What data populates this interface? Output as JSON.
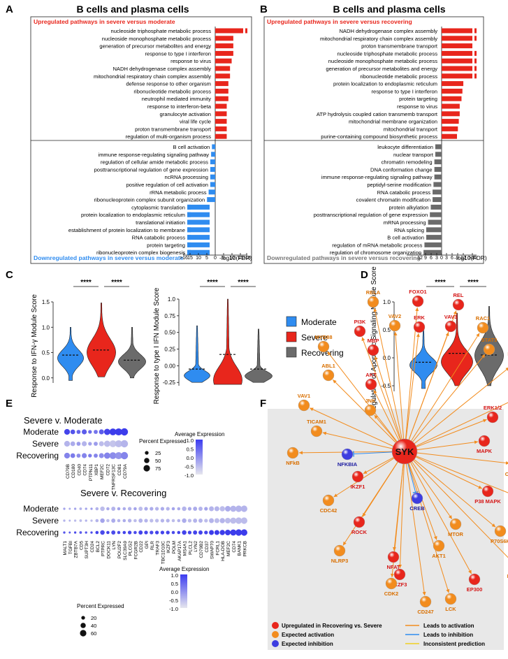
{
  "panels": {
    "A": {
      "letter": "A",
      "title": "B cells and plasma cells",
      "up_header": "Upregulated pathways in severe versus moderate",
      "down_footer": "Downregulated pathways in severe versus moderate",
      "xlabel": "-log10(FDR)",
      "left_ticks": [
        ">16",
        "15",
        "10",
        "5",
        "0"
      ],
      "right_ticks": [
        "5",
        "10",
        "15",
        ">16"
      ]
    },
    "B": {
      "letter": "B",
      "title": "B cells and plasma cells",
      "up_header": "Upregulated pathways in severe versus recovering",
      "down_footer": "Downregulated pathways in severe versus recovering",
      "xlabel": "-log10(FDR)",
      "left_ticks": [
        "12",
        "9",
        "6",
        "3",
        "0"
      ],
      "right_ticks": [
        "3",
        "6",
        "9",
        "12",
        ">16"
      ]
    },
    "C": {
      "letter": "C",
      "ylabel1": "Response to IFN-γ Module Score",
      "ylabel2": "Response to type I IFN Module Score",
      "sig": "****"
    },
    "D": {
      "letter": "D",
      "ylabel": "Regulation of Apoptotic Signaling Module Score",
      "sig": "****"
    },
    "E": {
      "letter": "E",
      "top_title": "Severe v. Moderate",
      "bottom_title": "Severe v. Recovering",
      "rows": [
        "Moderate",
        "Severe",
        "Recovering"
      ],
      "avg_label": "Average Expression",
      "pct_label": "Percent Expressed",
      "avg_ticks": [
        "1.0",
        "0.5",
        "0.0",
        "-0.5",
        "-1.0"
      ],
      "pct_top": [
        "25",
        "50",
        "75"
      ],
      "pct_bottom": [
        "20",
        "40",
        "60"
      ]
    },
    "F": {
      "letter": "F",
      "hub": "SYK",
      "legend_red": "Upregulated in Recovering vs. Severe",
      "legend_orange": "Expected activation",
      "legend_blue": "Expected inhibition",
      "legend_act": "Leads to activation",
      "legend_inh": "Leads to inhibition",
      "legend_inc": "Inconsistent prediction"
    }
  },
  "legend_groups": [
    {
      "label": "Moderate",
      "color": "#2f8cf0"
    },
    {
      "label": "Severe",
      "color": "#e8261c"
    },
    {
      "label": "Recovering",
      "color": "#6b6b6b"
    }
  ],
  "colors": {
    "moderate": "#2f8cf0",
    "severe": "#e8261c",
    "recovering": "#6b6b6b",
    "orange": "#f28c1e",
    "blue": "#3d3de0"
  },
  "chart_data": [
    {
      "type": "bar",
      "panel": "A",
      "series": [
        {
          "name": "Upregulated pathways in severe versus moderate",
          "categories": [
            "nucleoside triphosphate metabolic process",
            "nucleoside monophosphate metabolic process",
            "generation of precursor metabolites and energy",
            "response to type I interferon",
            "response to virus",
            "NADH dehydrogenase complex assembly",
            "mitochondrial respiratory chain complex assembly",
            "defense response to other organism",
            "ribonucleotide metabolic process",
            "neutrophil mediated immunity",
            "response to interferon-beta",
            "granulocyte activation",
            "viral life cycle",
            "proton transmembrane transport",
            "regulation of multi-organism process"
          ],
          "values": [
            17,
            11,
            11,
            11,
            10,
            9,
            9,
            8,
            8,
            8,
            7,
            7,
            7,
            7,
            7
          ],
          "broken": [
            true,
            false,
            false,
            false,
            false,
            false,
            false,
            false,
            false,
            false,
            false,
            false,
            false,
            false,
            false
          ]
        },
        {
          "name": "Downregulated pathways in severe versus moderate",
          "categories": [
            "B cell activation",
            "immune response-regulating signaling pathway",
            "regulation of cellular amide metabolic process",
            "posttranscriptional regulation of gene expression",
            "ncRNA processing",
            "positive regulation of cell activation",
            "rRNA metabolic process",
            "ribonucleoprotein complex subunit organization",
            "cytoplasmic translation",
            "protein localization to endoplasmic reticulum",
            "translational initiation",
            "establishment of protein localization to membrane",
            "RNA catabolic process",
            "protein targeting",
            "ribonucleoprotein complex biogenesis"
          ],
          "values": [
            2,
            2.5,
            3,
            3,
            3,
            3,
            4,
            5,
            17,
            17,
            17,
            17,
            17,
            17,
            17
          ],
          "broken": [
            false,
            false,
            false,
            false,
            false,
            false,
            false,
            false,
            true,
            true,
            true,
            true,
            true,
            true,
            true
          ]
        }
      ],
      "xlabel": "-log10(FDR)"
    },
    {
      "type": "bar",
      "panel": "B",
      "series": [
        {
          "name": "Upregulated pathways in severe versus recovering",
          "categories": [
            "NADH dehydrogenase complex assembly",
            "mitochondrial respiratory chain complex assembly",
            "proton transmembrane transport",
            "nucleoside triphosphate metabolic process",
            "nucleoside monophosphate metabolic process",
            "generation of precursor metabolites and energy",
            "ribonucleotide metabolic process",
            "protein localization to endoplasmic reticulum",
            "response to type I interferon",
            "protein targeting",
            "response to virus",
            "ATP hydrolysis coupled cation transmemb transport",
            "mitochondrial membrane organization",
            "mitochondrial transport",
            "purine-containing compound biosynthetic process"
          ],
          "values": [
            17,
            17,
            17,
            17,
            17,
            17,
            17,
            12,
            11.5,
            11,
            10,
            10,
            9.5,
            9,
            8.5
          ],
          "broken": [
            true,
            true,
            false,
            true,
            true,
            true,
            true,
            false,
            false,
            false,
            false,
            false,
            false,
            false,
            false
          ]
        },
        {
          "name": "Downregulated pathways in severe versus recovering",
          "categories": [
            "leukocyte differentiation",
            "nuclear transport",
            "chromatin remodeling",
            "DNA conformation change",
            "immune response-regulating signaling pathway",
            "peptidyl-serine modification",
            "RNA catabolic process",
            "covalent chromatin modification",
            "protein alkylation",
            "posttranscriptional regulation of gene expression",
            "mRNA processing",
            "RNA splicing",
            "B cell activation",
            "regulation of mRNA metabolic process",
            "regulation of chromosome organization"
          ],
          "values": [
            3.5,
            3.5,
            4,
            4,
            4,
            4.5,
            5,
            5,
            6,
            6.5,
            7.5,
            8.5,
            8.5,
            9.5,
            10
          ],
          "broken": [
            false,
            false,
            false,
            false,
            false,
            false,
            false,
            false,
            false,
            false,
            false,
            false,
            false,
            false,
            false
          ]
        }
      ],
      "xlabel": "-log10(FDR)"
    },
    {
      "type": "violin",
      "panel": "C-left",
      "categories": [
        "Moderate",
        "Severe",
        "Recovering"
      ],
      "medians": [
        0.45,
        0.55,
        0.35
      ],
      "yticks": [
        "1.5",
        "1.0",
        "0.5",
        "0.0"
      ],
      "ylim": [
        -0.1,
        1.5
      ]
    },
    {
      "type": "violin",
      "panel": "C-right",
      "categories": [
        "Moderate",
        "Severe",
        "Recovering"
      ],
      "medians": [
        -0.05,
        0.17,
        -0.05
      ],
      "yticks": [
        "1.0",
        "0.75",
        "0.50",
        "0.25",
        "0.00",
        "-0.25"
      ],
      "ylim": [
        -0.3,
        1.0
      ]
    },
    {
      "type": "violin",
      "panel": "D",
      "categories": [
        "Moderate",
        "Severe",
        "Recovering"
      ],
      "medians": [
        -0.08,
        0.08,
        0.05
      ],
      "yticks": [
        "1.0",
        "0.5",
        "0.0",
        "-0.5"
      ],
      "ylim": [
        -0.6,
        1.0
      ]
    },
    {
      "type": "dotplot",
      "panel": "E-top",
      "genes": [
        "CD79B",
        "CD180",
        "CD40",
        "CD74",
        "PTPN11",
        "XBP1",
        "MEF2C",
        "CD72",
        "TNFRSF13C",
        "CD81",
        "CD79A"
      ],
      "rows": [
        "Moderate",
        "Severe",
        "Recovering"
      ],
      "avg": [
        [
          0.9,
          0.7,
          0.5,
          0.6,
          0.4,
          0.3,
          0.6,
          0.9,
          1.0,
          1.0,
          1.0
        ],
        [
          -0.5,
          -0.4,
          -0.2,
          -0.5,
          -0.3,
          -0.2,
          -0.6,
          -0.6,
          -0.7,
          -0.6,
          -0.5
        ],
        [
          0.1,
          0.2,
          0.0,
          0.1,
          0.2,
          0.1,
          0.0,
          0.1,
          0.0,
          -0.1,
          0.1
        ]
      ],
      "pct": [
        [
          60,
          40,
          30,
          45,
          25,
          30,
          45,
          70,
          85,
          90,
          95
        ],
        [
          60,
          40,
          30,
          45,
          25,
          30,
          45,
          70,
          85,
          90,
          95
        ],
        [
          60,
          40,
          30,
          45,
          25,
          30,
          45,
          70,
          85,
          90,
          95
        ]
      ]
    },
    {
      "type": "dotplot",
      "panel": "E-bottom",
      "genes": [
        "MALT1",
        "TGFBI",
        "ZBTB7A",
        "CD5",
        "SUPT3H",
        "CD24",
        "BCL2",
        "PTPRC",
        "DOCK11",
        "LYN",
        "POU2F2",
        "SLC39A9",
        "PLCG2",
        "FCGR2B",
        "CD22",
        "GPI",
        "RLR",
        "TRAF3",
        "TBC1D10C",
        "IKZF3",
        "POLM",
        "AKAP17A",
        "MS4A1",
        "PLCL2",
        "LYN2",
        "CD79B2",
        "CD37",
        "SWAP70",
        "FCRL1",
        "HLA-DOB",
        "MEF2C",
        "CD74",
        "BANK1",
        "PRKCB"
      ],
      "rows": [
        "Moderate",
        "Severe",
        "Recovering"
      ],
      "avg": [
        [
          -0.3,
          -0.4,
          -0.3,
          -0.5,
          -0.3,
          -0.2,
          -0.5,
          -0.6,
          -0.4,
          -0.5,
          -0.3,
          -0.4,
          -0.5,
          -0.3,
          -0.6,
          -0.4,
          -0.4,
          -0.5,
          -0.4,
          -0.5,
          -0.3,
          -0.4,
          -0.5,
          -0.4,
          -0.4,
          -0.5,
          -0.3,
          -0.5,
          -0.5,
          -0.6,
          -0.4,
          -0.5,
          -0.5,
          -0.5
        ],
        [
          -0.5,
          -0.5,
          -0.6,
          -0.6,
          -0.5,
          -0.6,
          -0.5,
          -0.3,
          -0.6,
          -0.4,
          -0.5,
          -0.4,
          -0.5,
          -0.6,
          -0.5,
          -0.5,
          -0.6,
          -0.6,
          -0.5,
          -0.5,
          -0.6,
          -0.5,
          -0.4,
          -0.6,
          -0.5,
          -0.5,
          -0.6,
          -0.5,
          -0.6,
          -0.5,
          -0.6,
          -0.6,
          -0.6,
          -0.6
        ],
        [
          0.7,
          0.6,
          0.8,
          0.6,
          0.7,
          0.8,
          0.9,
          0.8,
          0.9,
          0.8,
          0.8,
          0.9,
          0.9,
          0.8,
          0.9,
          0.9,
          0.8,
          0.9,
          0.9,
          0.9,
          0.8,
          0.9,
          0.9,
          0.9,
          0.9,
          0.9,
          0.9,
          1.0,
          1.0,
          1.0,
          1.0,
          1.0,
          1.0,
          1.0
        ]
      ],
      "pct": [
        [
          8,
          6,
          8,
          10,
          8,
          8,
          15,
          30,
          15,
          25,
          15,
          15,
          20,
          15,
          25,
          20,
          20,
          20,
          20,
          20,
          15,
          15,
          30,
          20,
          25,
          25,
          20,
          35,
          35,
          40,
          45,
          55,
          60,
          60
        ],
        [
          8,
          6,
          8,
          10,
          8,
          8,
          15,
          30,
          15,
          25,
          15,
          15,
          20,
          15,
          25,
          20,
          20,
          20,
          20,
          20,
          15,
          15,
          30,
          20,
          25,
          25,
          20,
          35,
          35,
          40,
          45,
          55,
          60,
          60
        ],
        [
          8,
          6,
          8,
          10,
          8,
          8,
          15,
          30,
          15,
          25,
          15,
          15,
          20,
          15,
          25,
          20,
          20,
          20,
          20,
          20,
          15,
          15,
          30,
          20,
          25,
          25,
          20,
          35,
          35,
          40,
          45,
          55,
          60,
          60
        ]
      ]
    }
  ],
  "network": {
    "hub": "SYK",
    "nodes": [
      {
        "label": "RELA",
        "color": "orange",
        "pos": [
          534,
          432
        ]
      },
      {
        "label": "FOXO1",
        "color": "red",
        "pos": [
          598,
          431
        ]
      },
      {
        "label": "REL",
        "color": "red",
        "pos": [
          656,
          436
        ]
      },
      {
        "label": "PI3K",
        "color": "red",
        "pos": [
          515,
          474
        ]
      },
      {
        "label": "VAV2",
        "color": "orange",
        "pos": [
          565,
          466
        ]
      },
      {
        "label": "ERK",
        "color": "red",
        "pos": [
          600,
          468
        ]
      },
      {
        "label": "VAV3",
        "color": "red",
        "pos": [
          645,
          467
        ]
      },
      {
        "label": "RAC1",
        "color": "orange",
        "pos": [
          691,
          469
        ]
      },
      {
        "label": "MYD88",
        "color": "orange",
        "pos": [
          463,
          496
        ]
      },
      {
        "label": "MBP",
        "color": "red",
        "pos": [
          534,
          501
        ]
      },
      {
        "label": "STAT3",
        "color": "orange",
        "pos": [
          700,
          500
        ]
      },
      {
        "label": "ABL1",
        "color": "orange",
        "pos": [
          470,
          537
        ]
      },
      {
        "label": "LCP2",
        "color": "orange",
        "pos": [
          736,
          520
        ]
      },
      {
        "label": "AKT",
        "color": "red",
        "pos": [
          531,
          550
        ]
      },
      {
        "label": "MAPK1",
        "color": "red",
        "pos": [
          744,
          568
        ]
      },
      {
        "label": "VAV1",
        "color": "orange",
        "pos": [
          435,
          580
        ]
      },
      {
        "label": "JNK",
        "color": "orange",
        "pos": [
          530,
          587
        ]
      },
      {
        "label": "ERK1/2",
        "color": "red",
        "pos": [
          705,
          597
        ]
      },
      {
        "label": "MAPK",
        "color": "red",
        "pos": [
          693,
          631
        ]
      },
      {
        "label": "TICAM1",
        "color": "orange",
        "pos": [
          453,
          617
        ]
      },
      {
        "label": "NFkB",
        "color": "orange",
        "pos": [
          419,
          648
        ]
      },
      {
        "label": "NFKBIA",
        "color": "blue",
        "pos": [
          497,
          650
        ]
      },
      {
        "label": "CTNNB1",
        "color": "orange",
        "pos": [
          738,
          664
        ]
      },
      {
        "label": "IKZF1",
        "color": "red",
        "pos": [
          512,
          682
        ]
      },
      {
        "label": "P38 MAPK",
        "color": "red",
        "pos": [
          698,
          703
        ]
      },
      {
        "label": "BACP31",
        "color": "orange",
        "pos": [
          752,
          715
        ]
      },
      {
        "label": "CREB",
        "color": "blue",
        "pos": [
          597,
          713
        ]
      },
      {
        "label": "CDC42",
        "color": "orange",
        "pos": [
          470,
          716
        ]
      },
      {
        "label": "ROCK",
        "color": "red",
        "pos": [
          514,
          747
        ]
      },
      {
        "label": "MTOR",
        "color": "orange",
        "pos": [
          652,
          750
        ]
      },
      {
        "label": "P70S6K",
        "color": "orange",
        "pos": [
          716,
          760
        ]
      },
      {
        "label": "AKT1",
        "color": "orange",
        "pos": [
          628,
          781
        ]
      },
      {
        "label": "NFAT",
        "color": "red",
        "pos": [
          563,
          797
        ]
      },
      {
        "label": "IKZF3",
        "color": "red",
        "pos": [
          572,
          822
        ]
      },
      {
        "label": "NLRP3",
        "color": "orange",
        "pos": [
          486,
          788
        ]
      },
      {
        "label": "CDK2",
        "color": "orange",
        "pos": [
          560,
          835
        ]
      },
      {
        "label": "EP300",
        "color": "red",
        "pos": [
          679,
          829
        ]
      },
      {
        "label": "PRKCD",
        "color": "orange",
        "pos": [
          739,
          810
        ]
      },
      {
        "label": "CD247",
        "color": "orange",
        "pos": [
          609,
          861
        ]
      },
      {
        "label": "LCK",
        "color": "orange",
        "pos": [
          645,
          857
        ]
      }
    ]
  }
}
